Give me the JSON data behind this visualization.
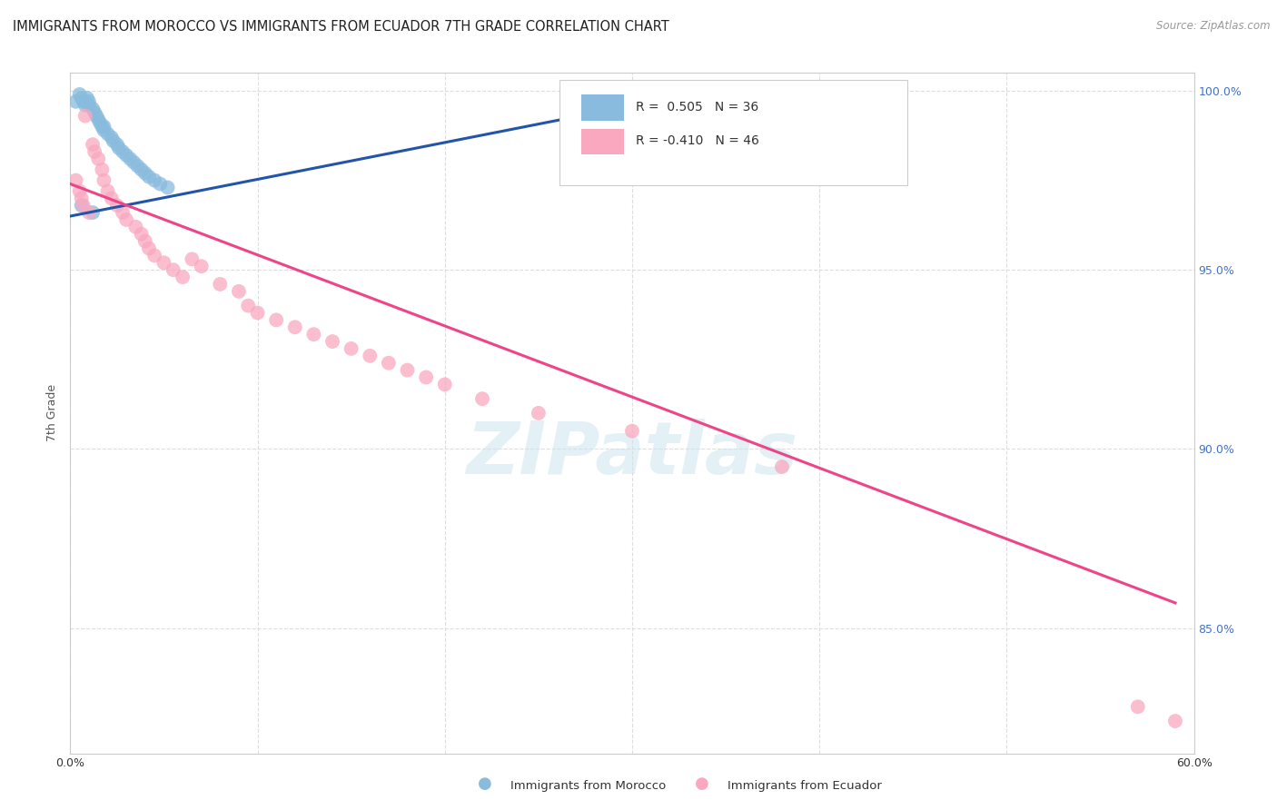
{
  "title": "IMMIGRANTS FROM MOROCCO VS IMMIGRANTS FROM ECUADOR 7TH GRADE CORRELATION CHART",
  "source": "Source: ZipAtlas.com",
  "ylabel": "7th Grade",
  "x_min": 0.0,
  "x_max": 0.6,
  "y_min": 0.815,
  "y_max": 1.005,
  "y_ticks": [
    0.85,
    0.9,
    0.95,
    1.0
  ],
  "y_tick_labels": [
    "85.0%",
    "90.0%",
    "95.0%",
    "100.0%"
  ],
  "x_ticks": [
    0.0,
    0.1,
    0.2,
    0.3,
    0.4,
    0.5,
    0.6
  ],
  "x_tick_labels_show": [
    "0.0%",
    "",
    "",
    "",
    "",
    "",
    "60.0%"
  ],
  "legend_line1": "R =  0.505   N = 36",
  "legend_line2": "R = -0.410   N = 46",
  "morocco_color": "#88bbdd",
  "ecuador_color": "#f9a8c0",
  "morocco_line_color": "#2255aa",
  "ecuador_line_color": "#ee4488",
  "watermark_text": "ZIPatlas",
  "morocco_scatter_x": [
    0.003,
    0.005,
    0.006,
    0.007,
    0.008,
    0.009,
    0.01,
    0.01,
    0.012,
    0.013,
    0.014,
    0.015,
    0.016,
    0.017,
    0.018,
    0.018,
    0.02,
    0.022,
    0.023,
    0.025,
    0.026,
    0.028,
    0.03,
    0.032,
    0.034,
    0.036,
    0.038,
    0.04,
    0.042,
    0.045,
    0.048,
    0.052,
    0.28,
    0.35,
    0.006,
    0.012
  ],
  "morocco_scatter_y": [
    0.997,
    0.999,
    0.998,
    0.997,
    0.996,
    0.998,
    0.997,
    0.996,
    0.995,
    0.994,
    0.993,
    0.992,
    0.991,
    0.99,
    0.99,
    0.989,
    0.988,
    0.987,
    0.986,
    0.985,
    0.984,
    0.983,
    0.982,
    0.981,
    0.98,
    0.979,
    0.978,
    0.977,
    0.976,
    0.975,
    0.974,
    0.973,
    0.999,
    0.998,
    0.968,
    0.966
  ],
  "ecuador_scatter_x": [
    0.003,
    0.005,
    0.006,
    0.007,
    0.008,
    0.01,
    0.012,
    0.013,
    0.015,
    0.017,
    0.018,
    0.02,
    0.022,
    0.025,
    0.028,
    0.03,
    0.035,
    0.038,
    0.04,
    0.042,
    0.045,
    0.05,
    0.055,
    0.06,
    0.065,
    0.07,
    0.08,
    0.09,
    0.095,
    0.1,
    0.11,
    0.12,
    0.13,
    0.14,
    0.15,
    0.16,
    0.17,
    0.18,
    0.19,
    0.2,
    0.22,
    0.25,
    0.3,
    0.38,
    0.57,
    0.59
  ],
  "ecuador_scatter_y": [
    0.975,
    0.972,
    0.97,
    0.968,
    0.993,
    0.966,
    0.985,
    0.983,
    0.981,
    0.978,
    0.975,
    0.972,
    0.97,
    0.968,
    0.966,
    0.964,
    0.962,
    0.96,
    0.958,
    0.956,
    0.954,
    0.952,
    0.95,
    0.948,
    0.953,
    0.951,
    0.946,
    0.944,
    0.94,
    0.938,
    0.936,
    0.934,
    0.932,
    0.93,
    0.928,
    0.926,
    0.924,
    0.922,
    0.92,
    0.918,
    0.914,
    0.91,
    0.905,
    0.895,
    0.828,
    0.824
  ],
  "morocco_trend_x": [
    0.0,
    0.35
  ],
  "morocco_trend_y": [
    0.965,
    1.001
  ],
  "ecuador_trend_x": [
    0.0,
    0.59
  ],
  "ecuador_trend_y": [
    0.974,
    0.857
  ],
  "background_color": "#ffffff",
  "grid_color": "#dddddd",
  "title_fontsize": 10.5,
  "axis_label_fontsize": 9,
  "tick_fontsize": 9,
  "right_tick_color": "#4472c4"
}
